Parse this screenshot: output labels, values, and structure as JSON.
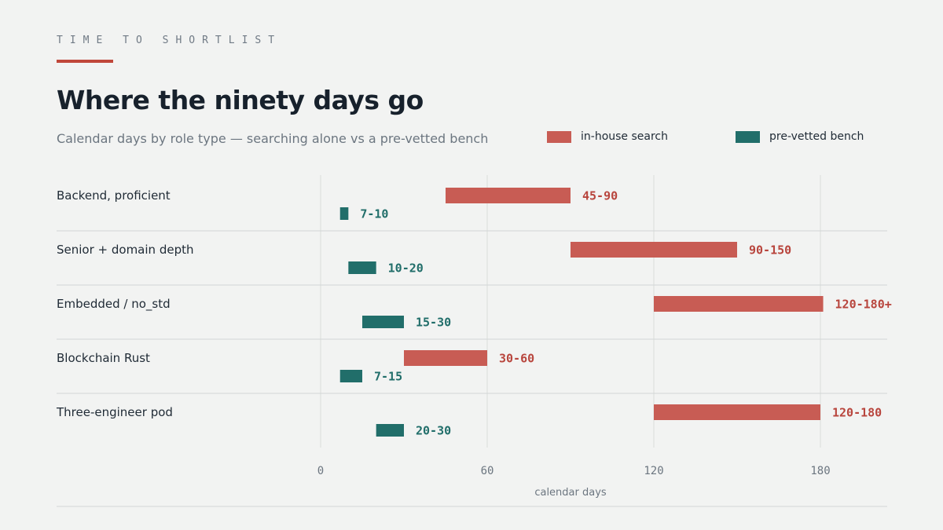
{
  "eyebrow": "TIME TO SHORTLIST",
  "colors": {
    "accent": "#c0473a",
    "in_house": "#c85c54",
    "in_house_text": "#b8453d",
    "bench": "#216e6a",
    "grid": "#d9dcdb",
    "divider": "#d3d6d5"
  },
  "legend": {
    "in_house": "in-house search",
    "bench": "pre-vetted bench"
  },
  "chart_data": {
    "type": "bar",
    "orientation": "horizontal",
    "title": "Where the ninety days go",
    "subtitle": "Calendar days by role type — searching alone vs a pre-vetted bench",
    "xlabel": "calendar days",
    "ylabel": "",
    "xlim": [
      0,
      203
    ],
    "xticks": [
      0,
      60,
      120,
      180
    ],
    "grid": true,
    "legend_position": "top-right",
    "categories": [
      "Backend, proficient",
      "Senior + domain depth",
      "Embedded / no_std",
      "Blockchain Rust",
      "Three-engineer pod"
    ],
    "series": [
      {
        "name": "in-house search",
        "ranges": [
          [
            45,
            90
          ],
          [
            90,
            150
          ],
          [
            120,
            181
          ],
          [
            30,
            60
          ],
          [
            120,
            180
          ]
        ],
        "labels": [
          "45-90",
          "90-150",
          "120-180+",
          "30-60",
          "120-180"
        ]
      },
      {
        "name": "pre-vetted bench",
        "ranges": [
          [
            7,
            10
          ],
          [
            10,
            20
          ],
          [
            15,
            30
          ],
          [
            7,
            15
          ],
          [
            20,
            30
          ]
        ],
        "labels": [
          "7-10",
          "10-20",
          "15-30",
          "7-15",
          "20-30"
        ]
      }
    ]
  }
}
